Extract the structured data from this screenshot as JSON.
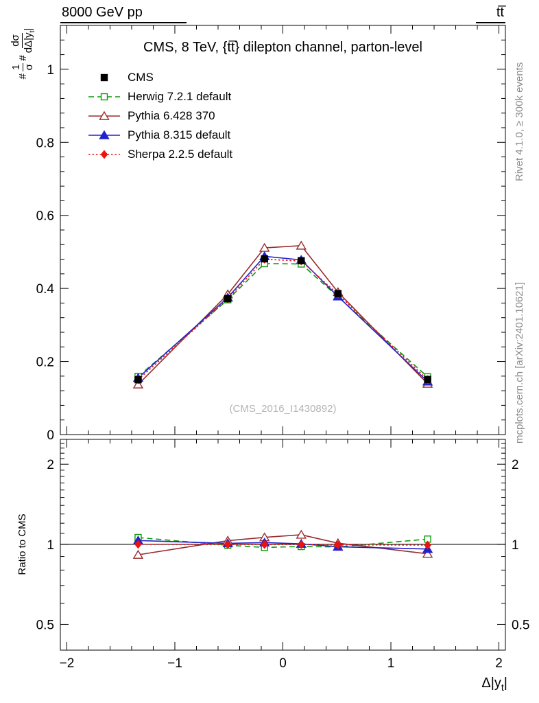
{
  "header": {
    "left": "8000 GeV pp",
    "right": "tt̅"
  },
  "side_texts": {
    "rivet": "Rivet 4.1.0, ≥ 300k events",
    "mcplots": "mcplots.cern.ch [arXiv:2401.10621]"
  },
  "main_panel": {
    "title": "CMS, 8 TeV, {tt̅} dilepton channel, parton-level",
    "watermark": "(CMS_2016_I1430892)",
    "ylabel": {
      "hash1": "#",
      "num1": "1",
      "den1": "σ",
      "hash2": "#",
      "num2": "dσ",
      "den2_pre": "dΔ|y",
      "den2_sub": "t",
      "den2_post": "|"
    }
  },
  "ratio_panel": {
    "ylabel": "Ratio to CMS"
  },
  "xlabel": {
    "pre": "Δ|y",
    "sub": "t",
    "post": "|"
  },
  "chart_data": [
    {
      "type": "line",
      "panel": "main",
      "title": "CMS, 8 TeV, {tt̅} dilepton channel, parton-level",
      "xlabel": "Δ|y_t|",
      "ylabel": "1/σ dσ/dΔ|y_t|",
      "legend_position": "top-left",
      "grid": false,
      "xlim": [
        -2.06,
        2.06
      ],
      "ylim": [
        0,
        1.12
      ],
      "xticks": [
        -2,
        -1,
        0,
        1,
        2
      ],
      "xtick_labels": [
        "−2",
        "−1",
        "0",
        "1",
        "2"
      ],
      "yticks": [
        0,
        0.2,
        0.4,
        0.6,
        0.8,
        1
      ],
      "ytick_labels": [
        "0",
        "0.2",
        "0.4",
        "0.6",
        "0.8",
        "1"
      ],
      "x": [
        -1.34,
        -0.51,
        -0.17,
        0.17,
        0.51,
        1.34
      ],
      "series": [
        {
          "name": "CMS",
          "color": "#000000",
          "marker": "square",
          "marker_fill": "filled",
          "line": "none",
          "values": [
            0.15,
            0.372,
            0.481,
            0.476,
            0.386,
            0.151
          ],
          "yerr": [
            0.01,
            0.008,
            0.008,
            0.008,
            0.008,
            0.01
          ]
        },
        {
          "name": "Herwig 7.2.1 default",
          "color": "#0a9a0a",
          "marker": "square",
          "marker_fill": "open",
          "line": "dashed",
          "values": [
            0.159,
            0.369,
            0.468,
            0.467,
            0.377,
            0.158
          ]
        },
        {
          "name": "Pythia 6.428 370",
          "color": "#9a2b2b",
          "marker": "triangle",
          "marker_fill": "open",
          "line": "solid",
          "values": [
            0.137,
            0.384,
            0.511,
            0.517,
            0.39,
            0.139
          ]
        },
        {
          "name": "Pythia 8.315 default",
          "color": "#2222cc",
          "marker": "triangle",
          "marker_fill": "filled",
          "line": "solid",
          "values": [
            0.155,
            0.375,
            0.488,
            0.478,
            0.378,
            0.145
          ]
        },
        {
          "name": "Sherpa 2.2.5 default",
          "color": "#ee1111",
          "marker": "diamond",
          "marker_fill": "filled",
          "line": "dotted",
          "values": [
            0.15,
            0.371,
            0.48,
            0.475,
            0.384,
            0.15
          ]
        }
      ]
    },
    {
      "type": "line",
      "panel": "ratio",
      "ylabel": "Ratio to CMS",
      "yscale": "log",
      "reference": 1,
      "xlim": [
        -2.06,
        2.06
      ],
      "ylim": [
        0.4,
        2.48
      ],
      "yticks": [
        0.5,
        1,
        2
      ],
      "ytick_labels": [
        "0.5",
        "1",
        "2"
      ],
      "x": [
        -1.34,
        -0.51,
        -0.17,
        0.17,
        0.51,
        1.34
      ],
      "series": [
        {
          "name": "Herwig 7.2.1 default",
          "color": "#0a9a0a",
          "marker": "square",
          "marker_fill": "open",
          "line": "dashed",
          "values": [
            1.06,
            0.992,
            0.973,
            0.981,
            0.977,
            1.046
          ]
        },
        {
          "name": "Pythia 6.428 370",
          "color": "#9a2b2b",
          "marker": "triangle",
          "marker_fill": "open",
          "line": "solid",
          "values": [
            0.913,
            1.032,
            1.062,
            1.086,
            1.01,
            0.921
          ]
        },
        {
          "name": "Pythia 8.315 default",
          "color": "#2222cc",
          "marker": "triangle",
          "marker_fill": "filled",
          "line": "solid",
          "values": [
            1.033,
            1.008,
            1.015,
            1.004,
            0.979,
            0.96
          ]
        },
        {
          "name": "Sherpa 2.2.5 default",
          "color": "#ee1111",
          "marker": "diamond",
          "marker_fill": "filled",
          "line": "dotted",
          "values": [
            1.0,
            0.997,
            0.998,
            0.998,
            0.995,
            0.993
          ]
        }
      ]
    }
  ]
}
